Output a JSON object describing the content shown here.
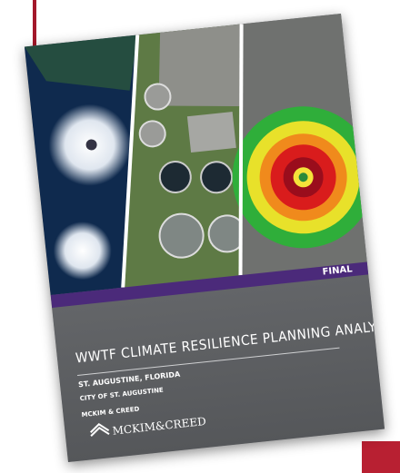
{
  "cover": {
    "status": "FINAL",
    "title": "WWTF CLIMATE RESILIENCE PLANNING ANALYSIS",
    "location": "ST. AUGUSTINE, FLORIDA",
    "client": "CITY OF ST. AUGUSTINE",
    "consultant": "MCKIM & CREED",
    "logo": "MCKIM&CREED"
  }
}
